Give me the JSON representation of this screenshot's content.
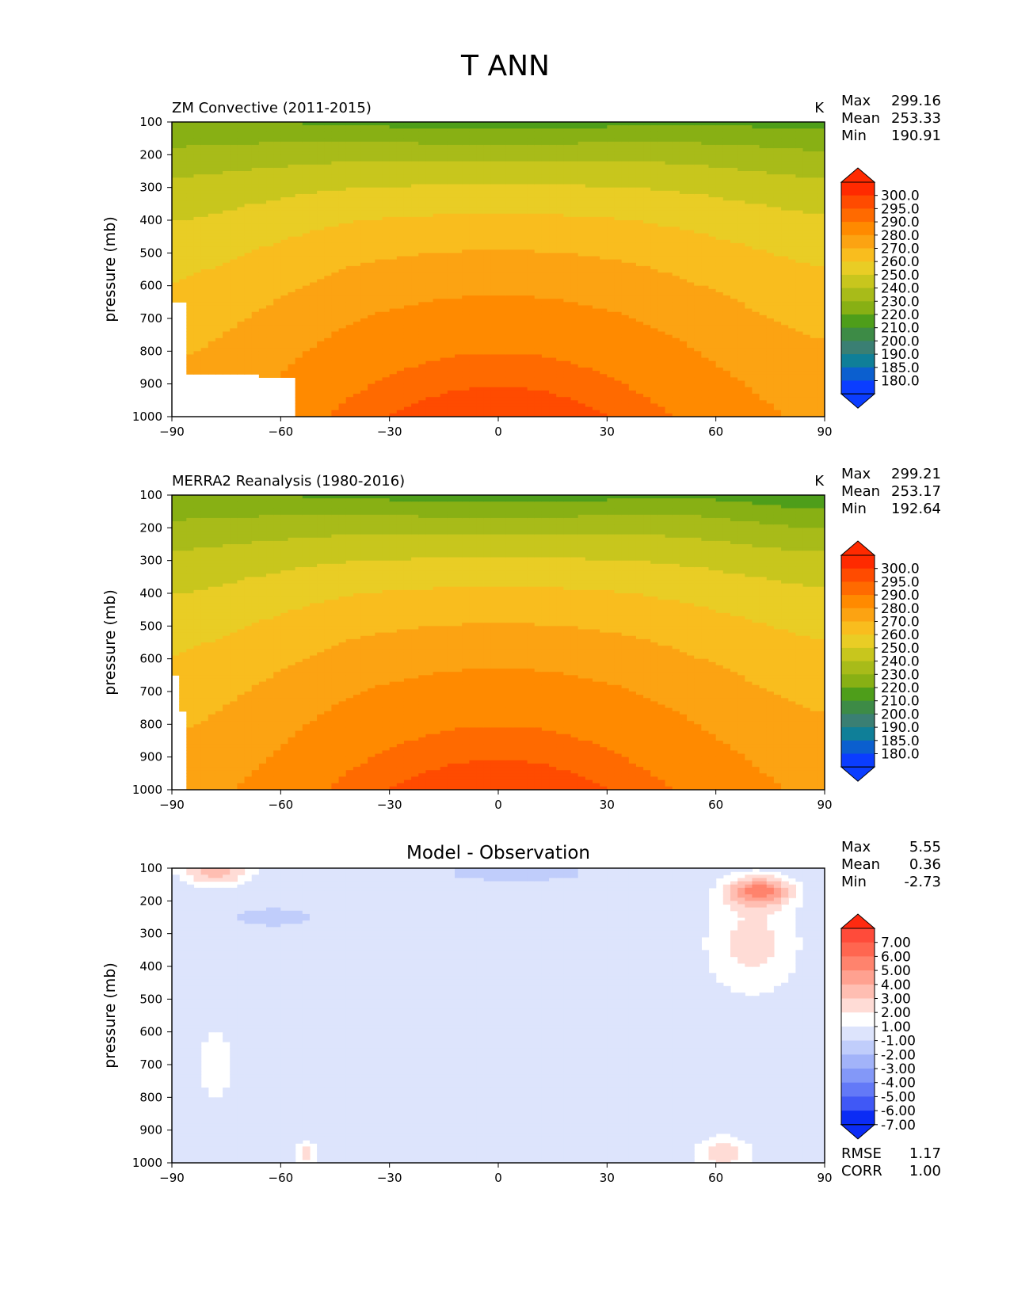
{
  "figure": {
    "title": "T ANN"
  },
  "chart_data": [
    {
      "type": "heatmap",
      "title": "ZM Convective (2011-2015)",
      "units": "K",
      "ylabel": "pressure (mb)",
      "xlabel": "",
      "xlim": [
        -90,
        90
      ],
      "ylim": [
        1000,
        100
      ],
      "xticks": [
        "−90",
        "−60",
        "−30",
        "0",
        "30",
        "60",
        "90"
      ],
      "yticks": [
        "100",
        "200",
        "300",
        "400",
        "500",
        "600",
        "700",
        "800",
        "900",
        "1000"
      ],
      "stats": {
        "max_label": "Max",
        "max": "299.16",
        "mean_label": "Mean",
        "mean": "253.33",
        "min_label": "Min",
        "min": "190.91"
      },
      "colorbar": {
        "levels": [
          "300.0",
          "295.0",
          "290.0",
          "280.0",
          "270.0",
          "260.0",
          "250.0",
          "240.0",
          "230.0",
          "220.0",
          "210.0",
          "200.0",
          "190.0",
          "185.0",
          "180.0"
        ],
        "colors": [
          "#ff2a00",
          "#ff4b00",
          "#ff6a00",
          "#ff8a00",
          "#fca312",
          "#f9bd1e",
          "#e9cd25",
          "#c8c61d",
          "#a8bb19",
          "#88b014",
          "#4e9e1a",
          "#3d8b46",
          "#3a7f73",
          "#0f7f98",
          "#0b5fcf",
          "#0b3dff"
        ],
        "max_color": "#ff2a00",
        "min_color": "#0b3dff"
      },
      "field": "model_temperature",
      "missing_mask": "antarctica_model"
    },
    {
      "type": "heatmap",
      "title": "MERRA2 Reanalysis (1980-2016)",
      "units": "K",
      "ylabel": "pressure (mb)",
      "xlabel": "",
      "xlim": [
        -90,
        90
      ],
      "ylim": [
        1000,
        100
      ],
      "xticks": [
        "−90",
        "−60",
        "−30",
        "0",
        "30",
        "60",
        "90"
      ],
      "yticks": [
        "100",
        "200",
        "300",
        "400",
        "500",
        "600",
        "700",
        "800",
        "900",
        "1000"
      ],
      "stats": {
        "max_label": "Max",
        "max": "299.21",
        "mean_label": "Mean",
        "mean": "253.17",
        "min_label": "Min",
        "min": "192.64"
      },
      "colorbar": {
        "levels": [
          "300.0",
          "295.0",
          "290.0",
          "280.0",
          "270.0",
          "260.0",
          "250.0",
          "240.0",
          "230.0",
          "220.0",
          "210.0",
          "200.0",
          "190.0",
          "185.0",
          "180.0"
        ],
        "colors": [
          "#ff2a00",
          "#ff4b00",
          "#ff6a00",
          "#ff8a00",
          "#fca312",
          "#f9bd1e",
          "#e9cd25",
          "#c8c61d",
          "#a8bb19",
          "#88b014",
          "#4e9e1a",
          "#3d8b46",
          "#3a7f73",
          "#0f7f98",
          "#0b5fcf",
          "#0b3dff"
        ],
        "max_color": "#ff2a00",
        "min_color": "#0b3dff"
      },
      "field": "obs_temperature",
      "missing_mask": "antarctica_obs"
    },
    {
      "type": "heatmap",
      "title": "Model - Observation",
      "units": "",
      "ylabel": "pressure (mb)",
      "xlabel": "",
      "xlim": [
        -90,
        90
      ],
      "ylim": [
        1000,
        100
      ],
      "xticks": [
        "−90",
        "−60",
        "−30",
        "0",
        "30",
        "60",
        "90"
      ],
      "yticks": [
        "100",
        "200",
        "300",
        "400",
        "500",
        "600",
        "700",
        "800",
        "900",
        "1000"
      ],
      "stats": {
        "max_label": "Max",
        "max": "5.55",
        "mean_label": "Mean",
        "mean": "0.36",
        "min_label": "Min",
        "min": "-2.73"
      },
      "extra_stats": {
        "rmse_label": "RMSE",
        "rmse": "1.17",
        "corr_label": "CORR",
        "corr": "1.00"
      },
      "colorbar": {
        "levels": [
          "7.00",
          "6.00",
          "5.00",
          "4.00",
          "3.00",
          "2.00",
          "1.00",
          "-1.00",
          "-2.00",
          "-3.00",
          "-4.00",
          "-5.00",
          "-6.00",
          "-7.00"
        ],
        "colors": [
          "#ff4b3a",
          "#ff6650",
          "#ff836d",
          "#ffa190",
          "#ffbeb2",
          "#ffdcd6",
          "#ffffff",
          "#dde4fc",
          "#c0cdfb",
          "#a2b3f9",
          "#8398f8",
          "#6379f7",
          "#4058f6",
          "#0b2cf5"
        ],
        "max_color": "#ff2a10",
        "min_color": "#0b2cf5"
      },
      "field": "difference"
    }
  ]
}
